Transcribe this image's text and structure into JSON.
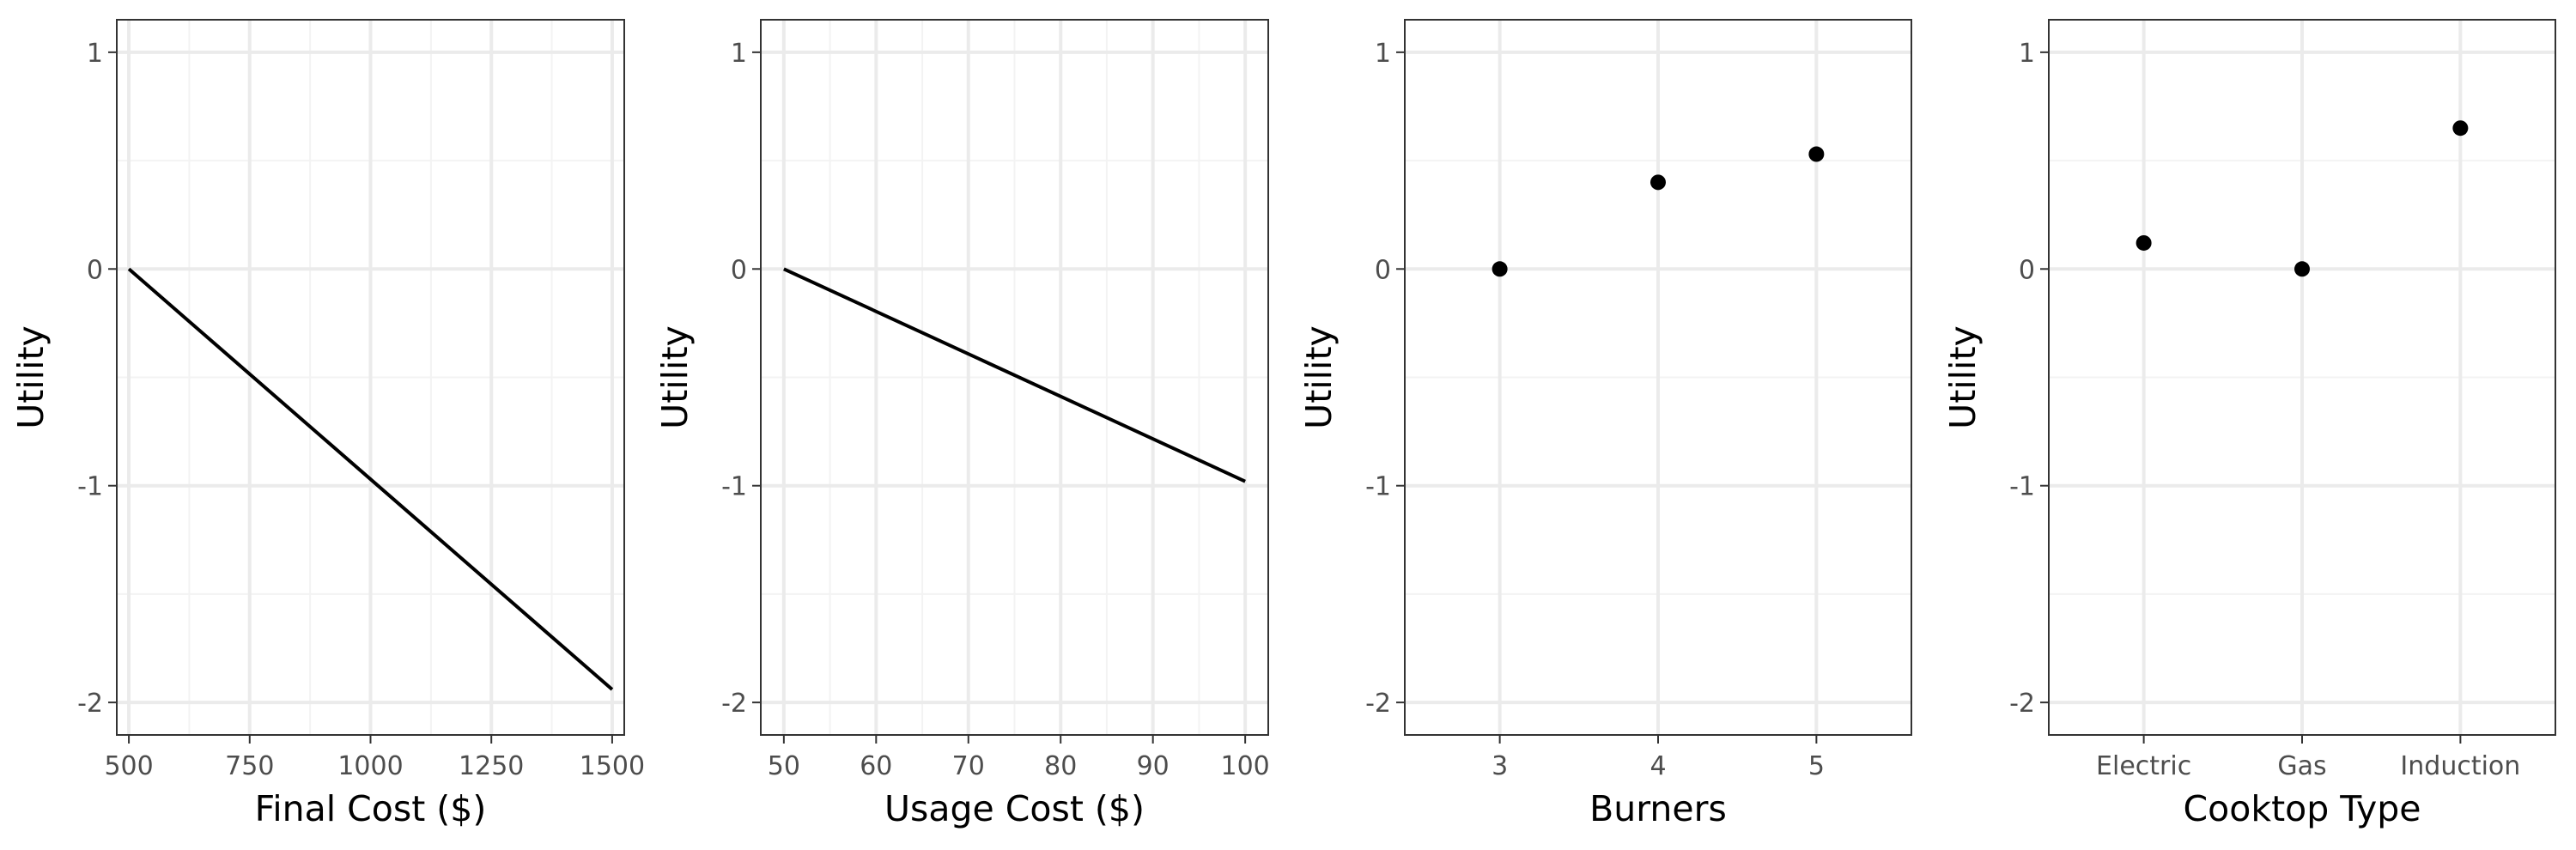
{
  "chart_data": [
    {
      "type": "line",
      "xlabel": "Final Cost ($)",
      "ylabel": "Utility",
      "x_ticks": [
        500,
        750,
        1000,
        1250,
        1500
      ],
      "x_tick_labels": [
        "500",
        "750",
        "1000",
        "1250",
        "1500"
      ],
      "y_ticks": [
        -2,
        -1,
        0,
        1
      ],
      "y_tick_labels": [
        "-2",
        "-1",
        "0",
        "1"
      ],
      "xlim": [
        475,
        1525
      ],
      "ylim": [
        -2.15,
        1.15
      ],
      "grid": true,
      "series": [
        {
          "x": [
            500,
            1500
          ],
          "y": [
            0,
            -1.94
          ]
        }
      ]
    },
    {
      "type": "line",
      "xlabel": "Usage Cost ($)",
      "ylabel": "Utility",
      "x_ticks": [
        50,
        60,
        70,
        80,
        90,
        100
      ],
      "x_tick_labels": [
        "50",
        "60",
        "70",
        "80",
        "90",
        "100"
      ],
      "y_ticks": [
        -2,
        -1,
        0,
        1
      ],
      "y_tick_labels": [
        "-2",
        "-1",
        "0",
        "1"
      ],
      "xlim": [
        47.5,
        102.5
      ],
      "ylim": [
        -2.15,
        1.15
      ],
      "grid": true,
      "series": [
        {
          "x": [
            50,
            100
          ],
          "y": [
            0,
            -0.98
          ]
        }
      ]
    },
    {
      "type": "scatter",
      "xlabel": "Burners",
      "ylabel": "Utility",
      "categories": [
        "3",
        "4",
        "5"
      ],
      "y_ticks": [
        -2,
        -1,
        0,
        1
      ],
      "y_tick_labels": [
        "-2",
        "-1",
        "0",
        "1"
      ],
      "ylim": [
        -2.15,
        1.15
      ],
      "grid": true,
      "series": [
        {
          "values": [
            0,
            0.4,
            0.53
          ]
        }
      ]
    },
    {
      "type": "scatter",
      "xlabel": "Cooktop Type",
      "ylabel": "Utility",
      "categories": [
        "Electric",
        "Gas",
        "Induction"
      ],
      "y_ticks": [
        -2,
        -1,
        0,
        1
      ],
      "y_tick_labels": [
        "-2",
        "-1",
        "0",
        "1"
      ],
      "ylim": [
        -2.15,
        1.15
      ],
      "grid": true,
      "series": [
        {
          "values": [
            0.12,
            0,
            0.65
          ]
        }
      ]
    }
  ]
}
